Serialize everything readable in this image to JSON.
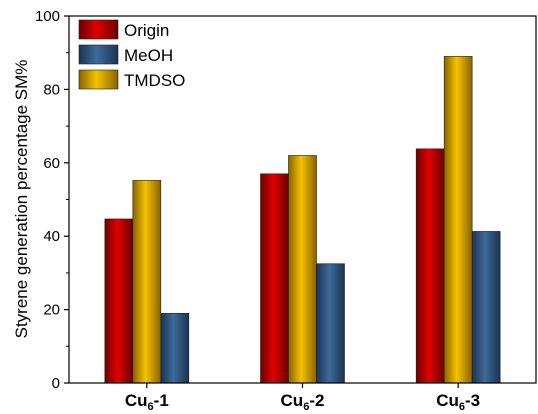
{
  "chart_data": {
    "type": "bar",
    "title": "",
    "xlabel": "",
    "ylabel": "Styrene generation percentage SM%",
    "ylim": [
      0,
      100
    ],
    "yticks": [
      0,
      20,
      40,
      60,
      80,
      100
    ],
    "categories": [
      {
        "base": "Cu",
        "sub": "6",
        "suffix": "-1"
      },
      {
        "base": "Cu",
        "sub": "6",
        "suffix": "-2"
      },
      {
        "base": "Cu",
        "sub": "6",
        "suffix": "-3"
      }
    ],
    "series": [
      {
        "name": "Origin",
        "values": [
          44.7,
          57.0,
          63.8
        ],
        "color": "#e00000",
        "dark": "#6a0000"
      },
      {
        "name": "MeOH",
        "values": [
          19.0,
          32.5,
          41.3
        ],
        "color": "#3d6a9a",
        "dark": "#1b3452"
      },
      {
        "name": "TMDSO",
        "values": [
          55.2,
          62.0,
          89.0
        ],
        "color": "#f5c300",
        "dark": "#8a6200"
      }
    ],
    "legend_position": "top-left",
    "grid": false
  }
}
